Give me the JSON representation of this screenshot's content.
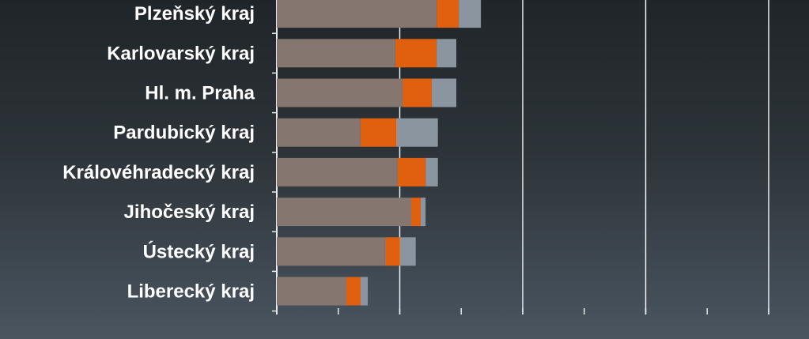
{
  "chart_data": {
    "type": "bar",
    "orientation": "horizontal",
    "stacked": true,
    "categories": [
      "Plzeňský kraj",
      "Karlovarský kraj",
      "Hl. m. Praha",
      "Pardubický kraj",
      "Královéhradecký kraj",
      "Jihočeský kraj",
      "Ústecký kraj",
      "Liberecký kraj"
    ],
    "series": [
      {
        "values": [
          13.0,
          9.6,
          10.2,
          6.8,
          9.8,
          10.9,
          8.8,
          5.6
        ]
      },
      {
        "values": [
          1.8,
          3.4,
          2.4,
          2.9,
          2.3,
          0.8,
          1.2,
          1.2
        ]
      },
      {
        "values": [
          1.8,
          1.6,
          2.0,
          3.4,
          1.0,
          0.4,
          1.3,
          0.6
        ]
      }
    ],
    "colors": [
      "#85766f",
      "#e06010",
      "#8a95a0"
    ],
    "xlim": [
      0,
      40
    ],
    "major_step": 10,
    "minor_step": 5,
    "grid": true
  }
}
